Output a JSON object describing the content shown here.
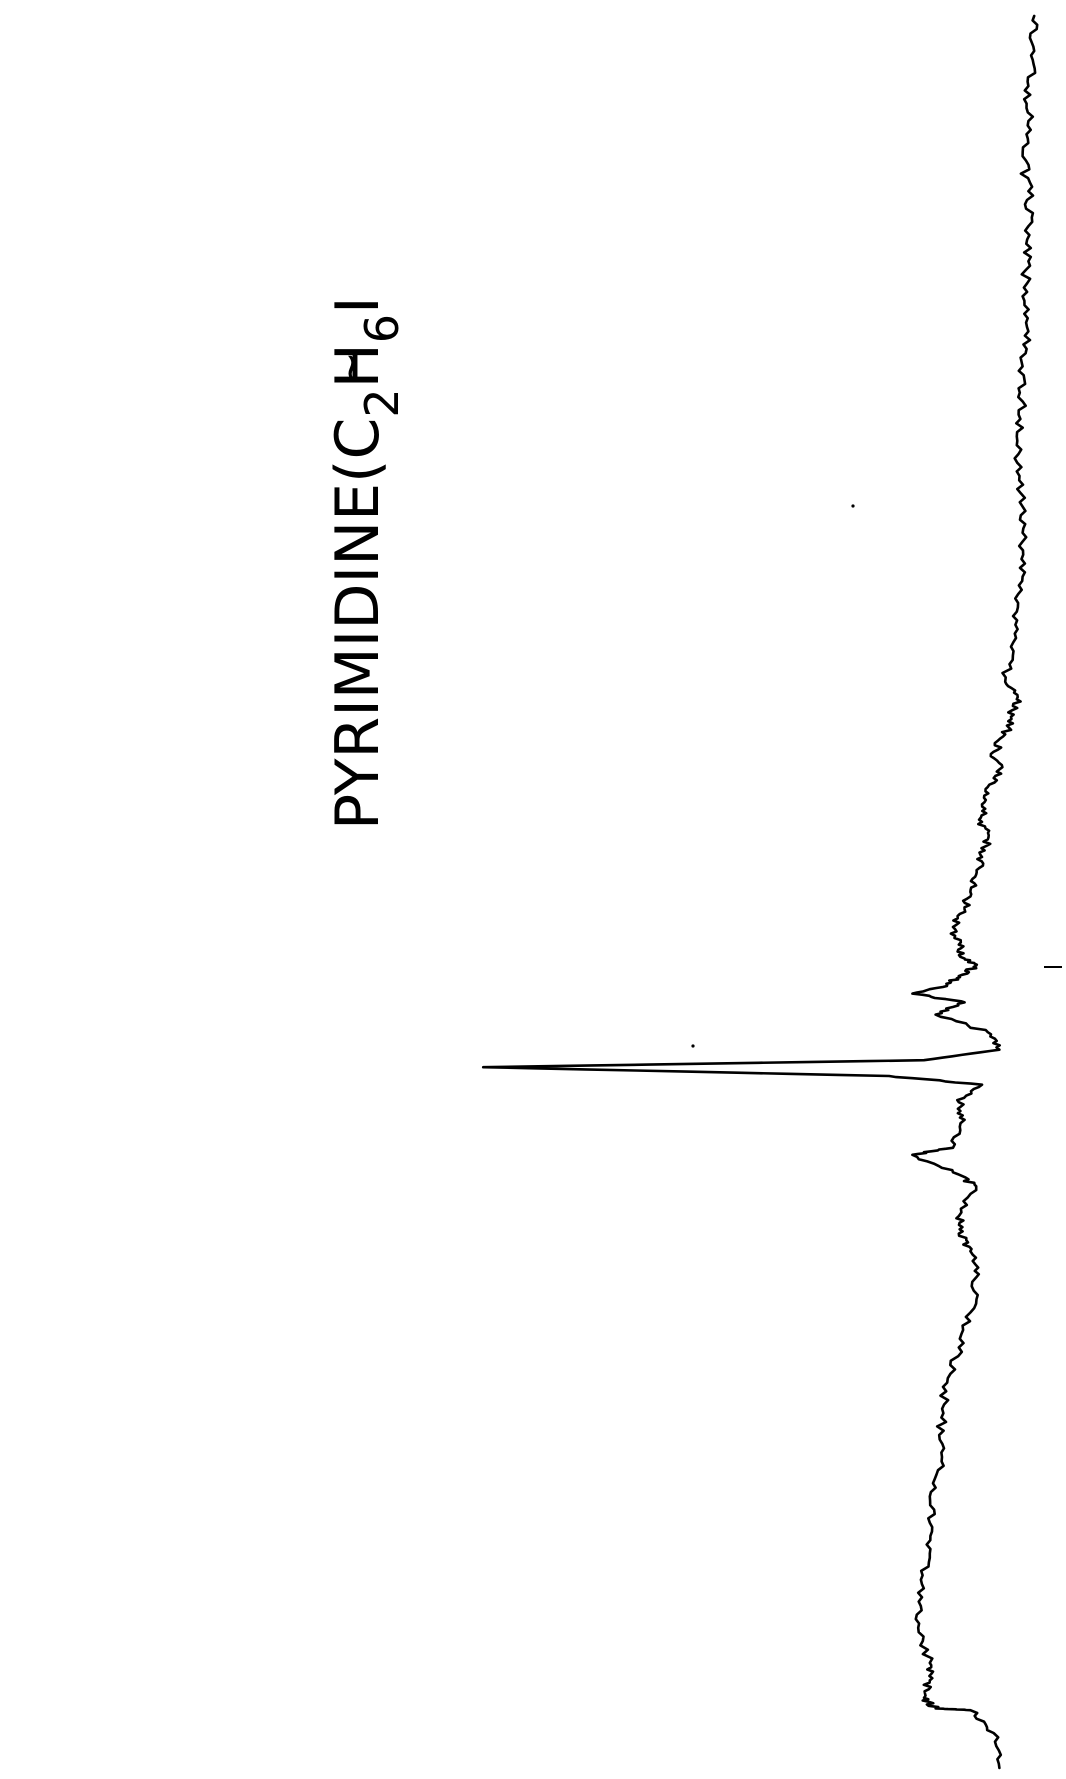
{
  "chart_data": {
    "type": "line",
    "title": "PYRIMIDINE(C",
    "title_sub1": "2",
    "title_mid": "H",
    "title_sub2": "6",
    "title_end": "I",
    "title_tilde": "~",
    "orientation": "rotated-90-ccw",
    "axes_visible": false,
    "grid": false,
    "legend": "none",
    "line_color": "#000000",
    "x_range": [
      0,
      1000
    ],
    "y_range": [
      0,
      100
    ],
    "series": [
      {
        "points": [
          [
            0,
            7
          ],
          [
            20,
            8
          ],
          [
            33,
            12
          ],
          [
            34,
            18
          ],
          [
            40,
            20
          ],
          [
            50,
            19
          ],
          [
            60,
            19
          ],
          [
            80,
            21
          ],
          [
            100,
            21
          ],
          [
            120,
            19
          ],
          [
            140,
            19
          ],
          [
            160,
            18
          ],
          [
            180,
            17
          ],
          [
            200,
            17
          ],
          [
            220,
            16
          ],
          [
            240,
            14
          ],
          [
            260,
            12
          ],
          [
            280,
            11
          ],
          [
            295,
            12
          ],
          [
            305,
            14
          ],
          [
            315,
            14
          ],
          [
            332,
            11
          ],
          [
            340,
            15
          ],
          [
            350,
            22
          ],
          [
            354,
            15
          ],
          [
            370,
            13
          ],
          [
            380,
            14
          ],
          [
            390,
            10
          ],
          [
            395,
            26
          ],
          [
            400,
            96
          ],
          [
            404,
            20
          ],
          [
            410,
            7
          ],
          [
            420,
            9
          ],
          [
            430,
            18
          ],
          [
            437,
            13
          ],
          [
            442,
            22
          ],
          [
            447,
            16
          ],
          [
            452,
            14
          ],
          [
            458,
            11
          ],
          [
            462,
            13
          ],
          [
            470,
            14
          ],
          [
            480,
            15
          ],
          [
            490,
            13
          ],
          [
            500,
            12
          ],
          [
            510,
            11
          ],
          [
            520,
            10
          ],
          [
            530,
            9
          ],
          [
            540,
            10
          ],
          [
            550,
            10
          ],
          [
            560,
            9
          ],
          [
            570,
            7
          ],
          [
            580,
            8
          ],
          [
            590,
            6
          ],
          [
            600,
            5
          ],
          [
            610,
            4
          ],
          [
            620,
            6
          ],
          [
            640,
            5
          ],
          [
            660,
            4
          ],
          [
            680,
            3
          ],
          [
            700,
            3
          ],
          [
            720,
            3
          ],
          [
            740,
            4
          ],
          [
            760,
            4
          ],
          [
            780,
            3
          ],
          [
            800,
            3
          ],
          [
            820,
            2
          ],
          [
            840,
            3
          ],
          [
            860,
            2
          ],
          [
            880,
            2
          ],
          [
            900,
            2
          ],
          [
            920,
            3
          ],
          [
            940,
            2
          ],
          [
            960,
            2
          ],
          [
            980,
            1
          ],
          [
            1000,
            1
          ]
        ]
      }
    ]
  }
}
